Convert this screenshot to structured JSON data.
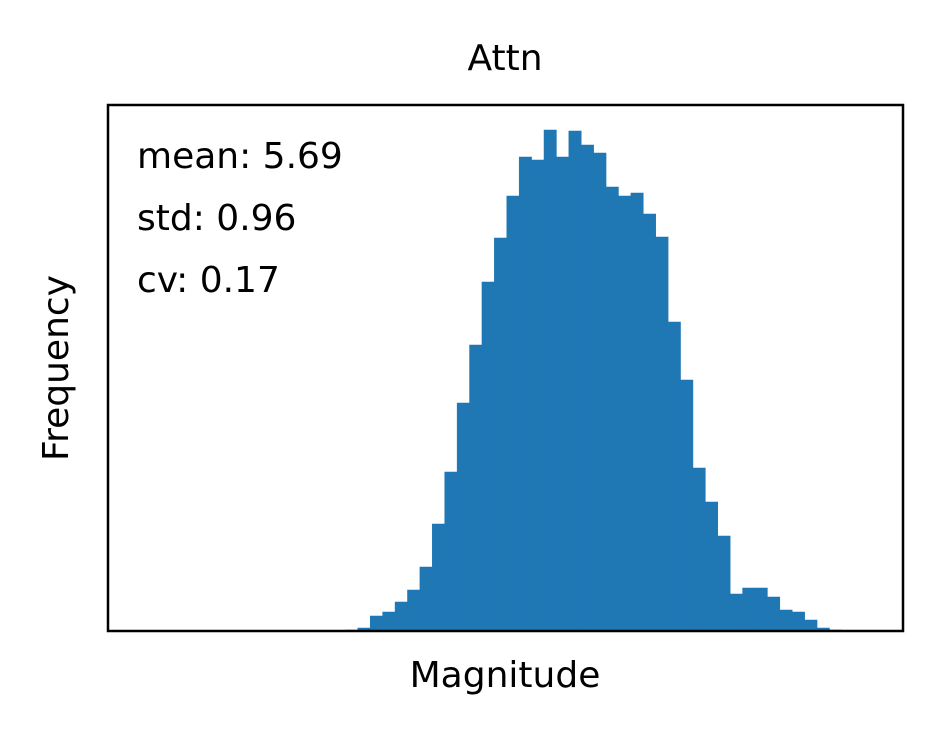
{
  "chart_data": {
    "type": "histogram",
    "title": "Attn",
    "xlabel": "Magnitude",
    "ylabel": "Frequency",
    "annotations": [
      "mean: 5.69",
      "std: 0.96",
      "cv: 0.17"
    ],
    "color": "#1f77b4",
    "bins": [
      3.3,
      3.432,
      3.564,
      3.696,
      3.828,
      3.96,
      4.092,
      4.224,
      4.356,
      4.488,
      4.62,
      4.752,
      4.884,
      5.016,
      5.148,
      5.28,
      5.412,
      5.544,
      5.676,
      5.808,
      5.94,
      6.072,
      6.204,
      6.336,
      6.468,
      6.6,
      6.732,
      6.864,
      6.996,
      7.128,
      7.26,
      7.392,
      7.524,
      7.656,
      7.788,
      7.92,
      8.052,
      8.184,
      8.316,
      8.448,
      8.58
    ],
    "values": [
      1,
      3,
      15,
      19,
      29,
      41,
      64,
      107,
      159,
      228,
      286,
      349,
      393,
      435,
      474,
      471,
      501,
      474,
      500,
      486,
      478,
      444,
      435,
      438,
      417,
      394,
      309,
      251,
      163,
      129,
      95,
      37,
      43,
      43,
      34,
      21,
      19,
      11,
      3,
      1
    ],
    "xlim": [
      0.775,
      9.23
    ],
    "ylim": [
      0,
      526
    ]
  }
}
